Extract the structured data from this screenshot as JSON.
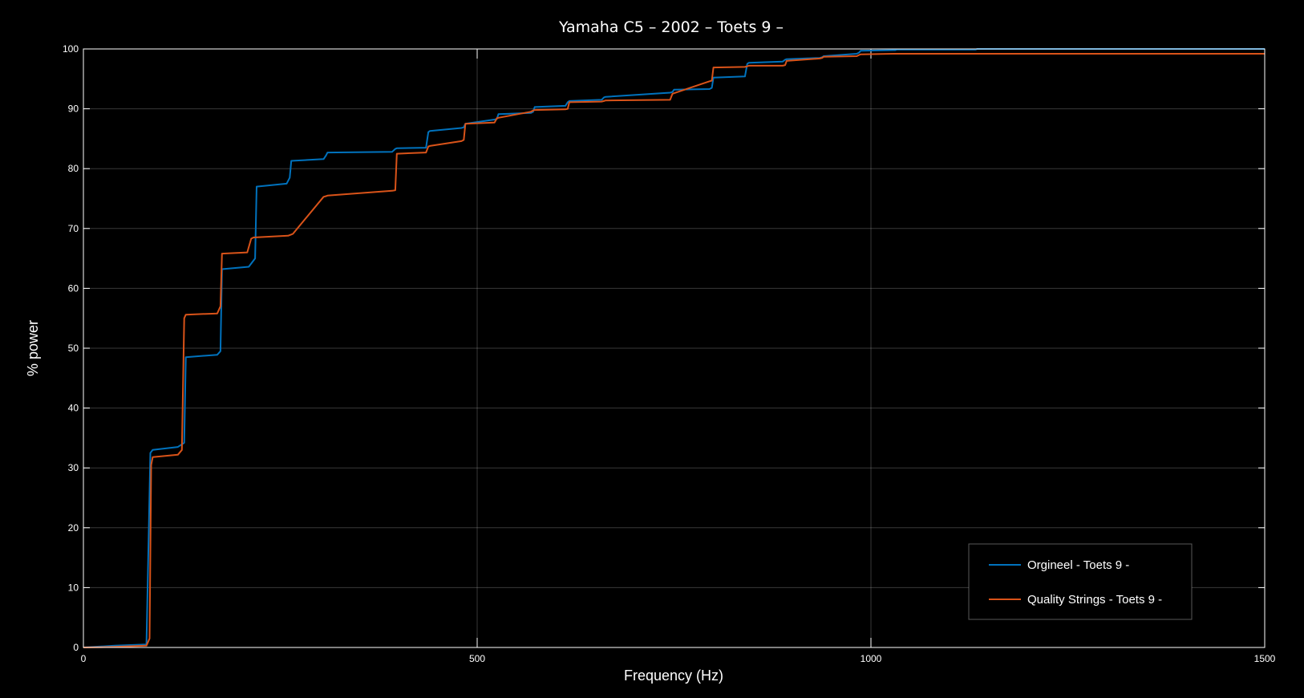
{
  "chart_data": {
    "type": "line",
    "title": "Yamaha C5 – 2002 – Toets 9 –",
    "xlabel": "Frequency (Hz)",
    "ylabel": "% power",
    "xlim": [
      0,
      1500
    ],
    "ylim": [
      0,
      100
    ],
    "xticks": [
      0,
      500,
      1000,
      1500
    ],
    "yticks": [
      0,
      10,
      20,
      30,
      40,
      50,
      60,
      70,
      80,
      90,
      100
    ],
    "grid": true,
    "legend_position": "bottom-right",
    "series": [
      {
        "name": "Orgineel - Toets 9 -",
        "color": "#0072BD",
        "x": [
          0,
          40,
          80,
          85,
          88,
          120,
          128,
          130,
          170,
          174,
          176,
          210,
          218,
          220,
          258,
          262,
          264,
          305,
          308,
          310,
          392,
          396,
          398,
          435,
          438,
          440,
          480,
          483,
          485,
          522,
          525,
          527,
          568,
          571,
          573,
          612,
          615,
          617,
          658,
          661,
          663,
          745,
          748,
          750,
          795,
          798,
          800,
          840,
          843,
          845,
          888,
          891,
          893,
          935,
          938,
          940,
          982,
          985,
          987,
          1028,
          1031,
          1033,
          1133,
          1135,
          1137,
          1220,
          1223,
          1225,
          1268,
          1271,
          1273,
          1375,
          1378,
          1380,
          1500
        ],
        "y": [
          0,
          0.3,
          0.5,
          32.5,
          33,
          33.5,
          34.2,
          48.5,
          48.9,
          49.5,
          63.2,
          63.6,
          65,
          77,
          77.5,
          78.5,
          81.3,
          81.6,
          82.2,
          82.7,
          82.8,
          83.3,
          83.4,
          83.5,
          86.1,
          86.3,
          86.8,
          86.9,
          87.5,
          88.2,
          88.3,
          89.1,
          89.3,
          89.5,
          90.3,
          90.5,
          91.1,
          91.3,
          91.5,
          91.9,
          92.0,
          92.7,
          92.8,
          93.2,
          93.3,
          93.5,
          95.2,
          95.4,
          97.5,
          97.7,
          97.9,
          98.2,
          98.3,
          98.5,
          98.6,
          98.8,
          99.2,
          99.4,
          99.7,
          99.8,
          99.8,
          99.9,
          99.9,
          100,
          100,
          100,
          100,
          100,
          100,
          100,
          100,
          100,
          100,
          100,
          100
        ]
      },
      {
        "name": "Quality Strings - Toets 9 -",
        "color": "#D95319",
        "x": [
          0,
          40,
          80,
          84,
          86,
          88,
          120,
          125,
          128,
          130,
          170,
          174,
          176,
          208,
          213,
          216,
          260,
          264,
          266,
          305,
          308,
          310,
          392,
          396,
          398,
          435,
          438,
          440,
          480,
          483,
          485,
          522,
          525,
          527,
          568,
          571,
          573,
          612,
          615,
          617,
          658,
          661,
          663,
          745,
          748,
          750,
          795,
          798,
          800,
          840,
          843,
          845,
          888,
          891,
          893,
          935,
          938,
          940,
          982,
          985,
          987,
          1028,
          1031,
          1033,
          1070,
          1075,
          1080,
          1150,
          1218,
          1222,
          1226,
          1270,
          1275,
          1280,
          1400,
          1500
        ],
        "y": [
          0,
          0.1,
          0.3,
          1.5,
          30.5,
          31.8,
          32.2,
          33,
          55,
          55.6,
          55.8,
          57,
          65.8,
          66,
          68.3,
          68.5,
          68.8,
          69,
          69.1,
          75.3,
          75.4,
          75.5,
          76.3,
          76.4,
          82.5,
          82.7,
          83.7,
          83.8,
          84.6,
          84.8,
          87.5,
          87.7,
          88.4,
          88.5,
          89.5,
          89.7,
          89.8,
          89.9,
          90,
          91.1,
          91.2,
          91.3,
          91.4,
          91.5,
          92.5,
          92.6,
          94.6,
          94.7,
          96.9,
          97.0,
          97.1,
          97.2,
          97.2,
          97.3,
          98.0,
          98.4,
          98.5,
          98.7,
          98.8,
          99.0,
          99.1,
          99.2,
          99.2,
          99.2,
          99.2,
          99.2,
          99.2,
          99.2,
          99.2,
          99.2,
          99.2,
          99.2,
          99.2,
          99.2,
          99.2,
          99.2
        ]
      }
    ]
  }
}
